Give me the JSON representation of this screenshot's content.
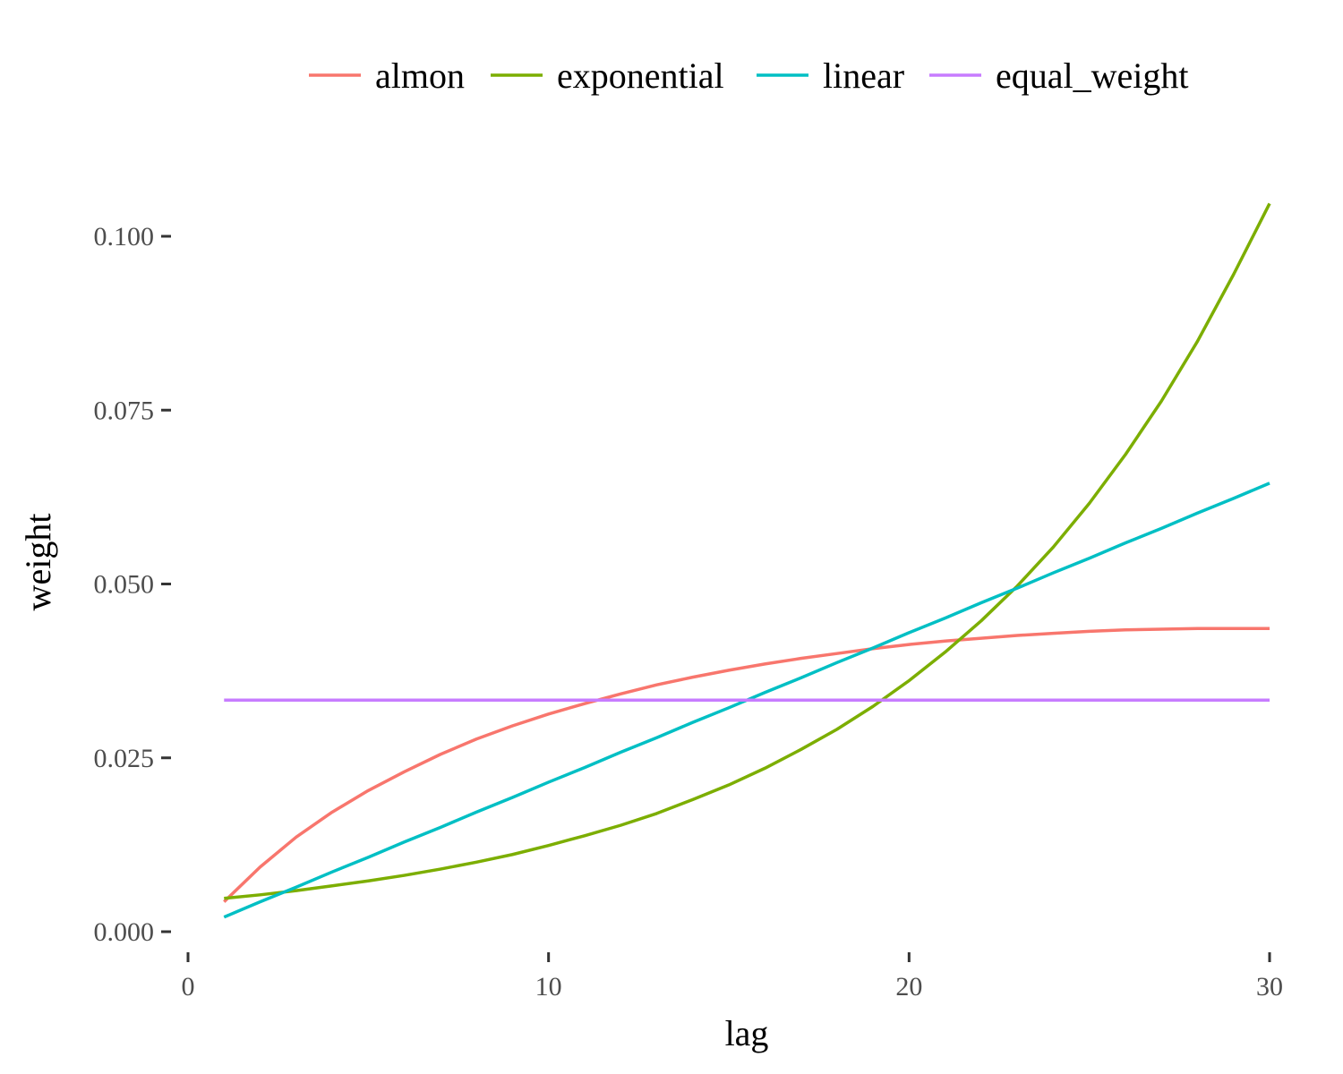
{
  "chart_data": {
    "type": "line",
    "xlabel": "lag",
    "ylabel": "weight",
    "xlim": [
      0,
      30
    ],
    "ylim": [
      0,
      0.105
    ],
    "x_ticks": [
      0,
      10,
      20,
      30
    ],
    "x_tick_labels": [
      "0",
      "10",
      "20",
      "30"
    ],
    "y_ticks": [
      0,
      0.025,
      0.05,
      0.075,
      0.1
    ],
    "y_tick_labels": [
      "0.000",
      "0.025",
      "0.050",
      "0.075",
      "0.100"
    ],
    "grid": false,
    "legend_position": "top",
    "x": [
      1,
      2,
      3,
      4,
      5,
      6,
      7,
      8,
      9,
      10,
      11,
      12,
      13,
      14,
      15,
      16,
      17,
      18,
      19,
      20,
      21,
      22,
      23,
      24,
      25,
      26,
      27,
      28,
      29,
      30
    ],
    "series": [
      {
        "name": "almon",
        "color": "#F8766D",
        "values": [
          0.0043,
          0.0093,
          0.0136,
          0.0172,
          0.0203,
          0.023,
          0.0255,
          0.0277,
          0.0296,
          0.0313,
          0.0328,
          0.0342,
          0.0355,
          0.0366,
          0.0376,
          0.0385,
          0.0393,
          0.04,
          0.0407,
          0.0413,
          0.0418,
          0.0422,
          0.0426,
          0.0429,
          0.0432,
          0.0434,
          0.0435,
          0.0436,
          0.0436,
          0.0436
        ]
      },
      {
        "name": "exponential",
        "color": "#7CAE00",
        "values": [
          0.0048,
          0.0053,
          0.0059,
          0.0066,
          0.0073,
          0.0081,
          0.009,
          0.01,
          0.0111,
          0.0124,
          0.0138,
          0.0153,
          0.017,
          0.019,
          0.0211,
          0.0235,
          0.0262,
          0.0291,
          0.0324,
          0.0361,
          0.0402,
          0.0447,
          0.0497,
          0.0553,
          0.0616,
          0.0686,
          0.0763,
          0.0849,
          0.0945,
          0.1047
        ]
      },
      {
        "name": "linear",
        "color": "#00BFC4",
        "values": [
          0.0021,
          0.0043,
          0.0064,
          0.0086,
          0.0107,
          0.0129,
          0.015,
          0.0172,
          0.0193,
          0.0215,
          0.0236,
          0.0258,
          0.0279,
          0.0301,
          0.0322,
          0.0344,
          0.0365,
          0.0387,
          0.0408,
          0.043,
          0.0451,
          0.0473,
          0.0494,
          0.0516,
          0.0537,
          0.0559,
          0.058,
          0.0602,
          0.0623,
          0.0645
        ]
      },
      {
        "name": "equal_weight",
        "color": "#C77CFF",
        "values": [
          0.0333,
          0.0333,
          0.0333,
          0.0333,
          0.0333,
          0.0333,
          0.0333,
          0.0333,
          0.0333,
          0.0333,
          0.0333,
          0.0333,
          0.0333,
          0.0333,
          0.0333,
          0.0333,
          0.0333,
          0.0333,
          0.0333,
          0.0333,
          0.0333,
          0.0333,
          0.0333,
          0.0333,
          0.0333,
          0.0333,
          0.0333,
          0.0333,
          0.0333,
          0.0333
        ]
      }
    ]
  }
}
